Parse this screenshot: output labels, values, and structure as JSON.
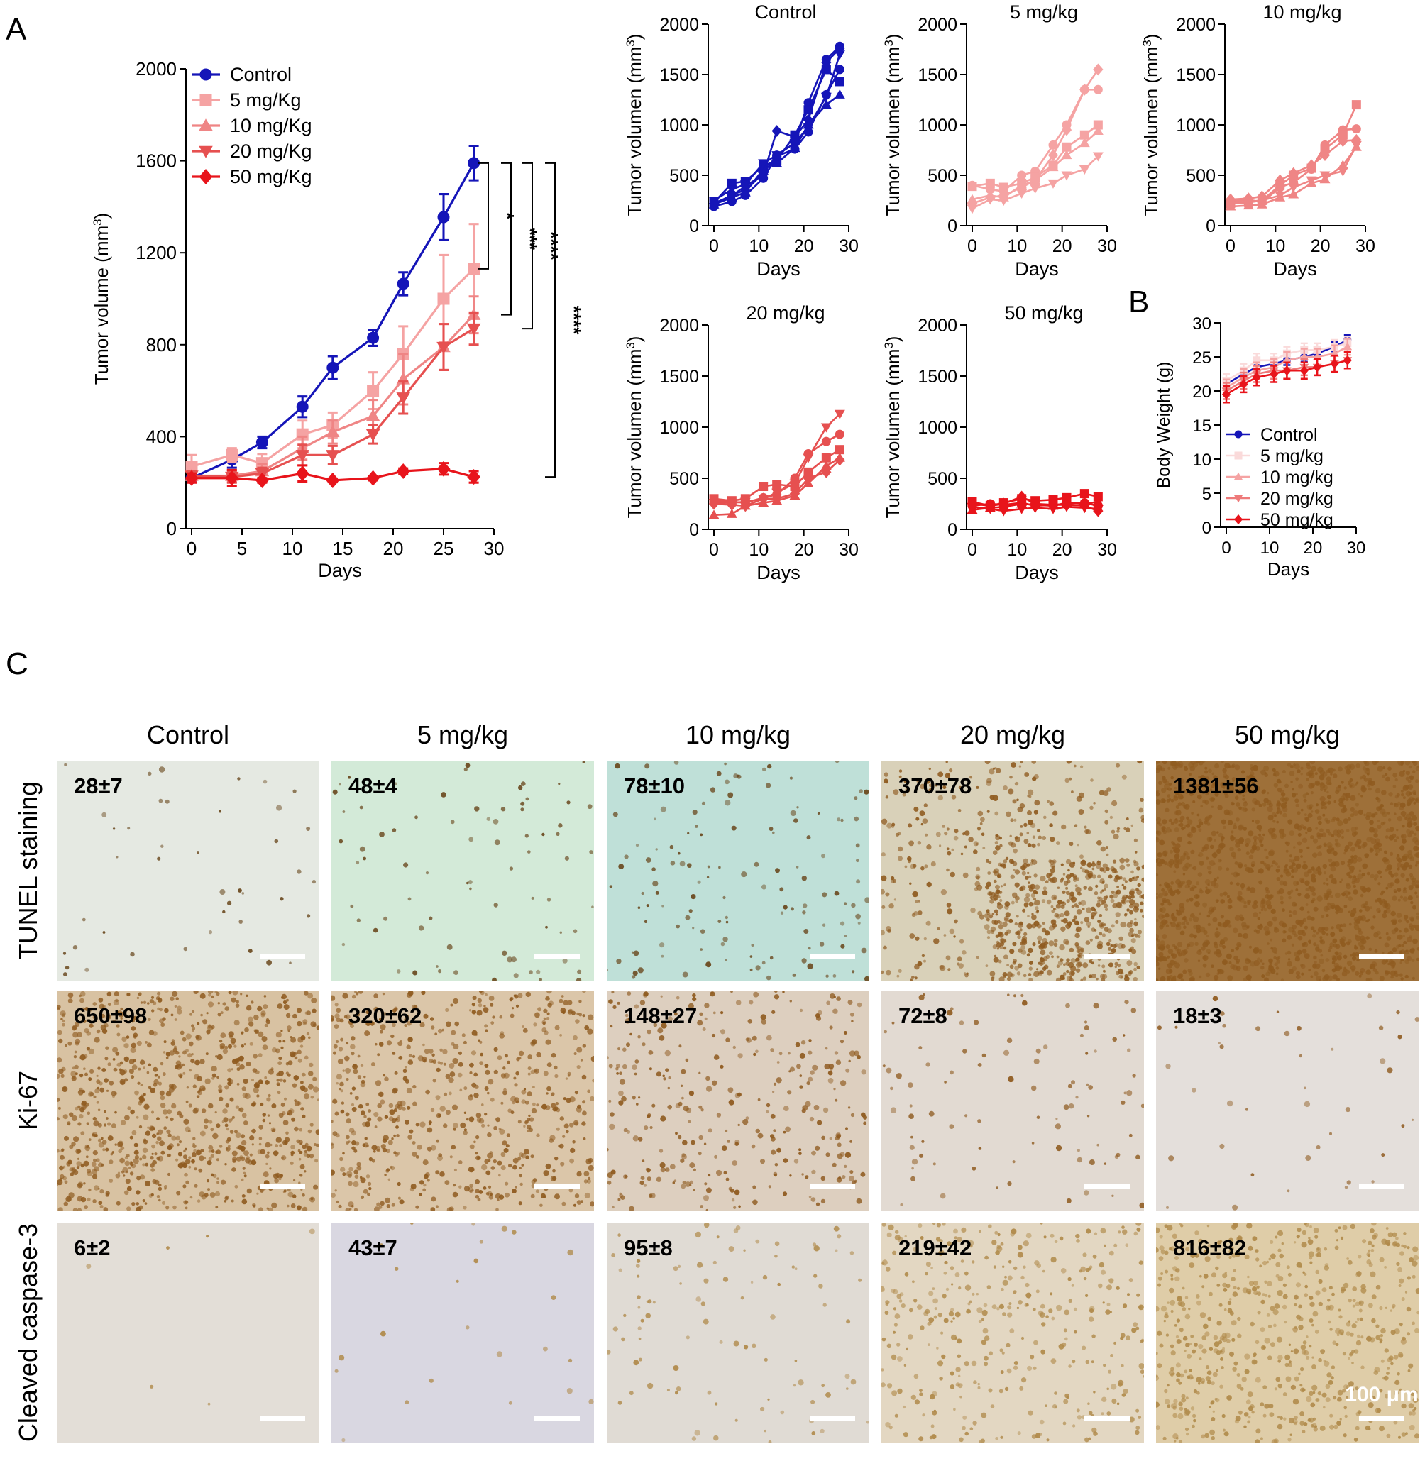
{
  "panel_labels": {
    "a": "A",
    "b": "B",
    "c": "C"
  },
  "colors": {
    "control": "#1515b8",
    "d5": "#f5a3a3",
    "d10": "#ef8585",
    "d20": "#e65050",
    "d50": "#e8141b",
    "tunel_blue": "#a9cfc8",
    "dab": "#8a5a1a"
  },
  "chart_data": [
    {
      "id": "mainA",
      "type": "line",
      "title": "",
      "xlabel": "Days",
      "ylabel": "Tumor volume (mm",
      "ylabel_sup": "3",
      "ylabel_tail": ")",
      "xlim": [
        0,
        30
      ],
      "ylim": [
        0,
        2000
      ],
      "xticks": [
        0,
        5,
        10,
        15,
        20,
        25,
        30
      ],
      "yticks": [
        0,
        400,
        800,
        1200,
        1600,
        2000
      ],
      "x": [
        0,
        4,
        7,
        11,
        14,
        18,
        21,
        25,
        28
      ],
      "series": [
        {
          "name": "Control",
          "marker": "circle",
          "color": "#1515b8",
          "values": [
            220,
            300,
            375,
            530,
            700,
            830,
            1065,
            1355,
            1590
          ],
          "err": [
            15,
            35,
            25,
            45,
            50,
            35,
            50,
            100,
            75
          ]
        },
        {
          "name": "5 mg/Kg",
          "marker": "square",
          "color": "#f5a3a3",
          "values": [
            270,
            320,
            285,
            410,
            450,
            600,
            760,
            1000,
            1130
          ],
          "err": [
            50,
            30,
            40,
            60,
            55,
            80,
            120,
            190,
            195
          ]
        },
        {
          "name": "10 mg/Kg",
          "marker": "triangle-up",
          "color": "#ef8585",
          "values": [
            230,
            230,
            250,
            350,
            420,
            490,
            650,
            790,
            930
          ],
          "err": [
            20,
            25,
            30,
            50,
            50,
            70,
            110,
            100,
            80
          ]
        },
        {
          "name": "20 mg/Kg",
          "marker": "triangle-down",
          "color": "#e65050",
          "values": [
            230,
            225,
            240,
            320,
            320,
            410,
            570,
            790,
            870
          ],
          "err": [
            20,
            25,
            25,
            45,
            40,
            40,
            70,
            100,
            70
          ]
        },
        {
          "name": "50 mg/Kg",
          "marker": "diamond",
          "color": "#e8141b",
          "values": [
            220,
            220,
            210,
            240,
            210,
            220,
            250,
            260,
            225
          ],
          "err": [
            20,
            35,
            10,
            35,
            8,
            10,
            12,
            25,
            25
          ]
        }
      ],
      "significance": [
        {
          "label": "*",
          "from": 1590,
          "to": 1130
        },
        {
          "label": "***",
          "from": 1590,
          "to": 930
        },
        {
          "label": "****",
          "from": 1590,
          "to": 870
        },
        {
          "label": "****",
          "from": 1590,
          "to": 225
        }
      ]
    },
    {
      "id": "smallControl",
      "type": "line",
      "title": "Control",
      "xlabel": "Days",
      "ylabel": "Tumor volumen (mm",
      "ylabel_sup": "3",
      "ylabel_tail": ")",
      "xlim": [
        0,
        30
      ],
      "ylim": [
        0,
        2000
      ],
      "xticks": [
        0,
        10,
        20,
        30
      ],
      "yticks": [
        0,
        500,
        1000,
        1500,
        2000
      ],
      "color": "#1515b8",
      "x": [
        0,
        4,
        7,
        11,
        14,
        18,
        21,
        25,
        28
      ],
      "series": [
        {
          "name": "m1",
          "marker": "circle",
          "values": [
            200,
            310,
            350,
            520,
            700,
            820,
            1220,
            1650,
            1780
          ]
        },
        {
          "name": "m2",
          "marker": "square",
          "values": [
            230,
            420,
            440,
            590,
            650,
            900,
            1150,
            1550,
            1430
          ]
        },
        {
          "name": "m3",
          "marker": "triangle-up",
          "values": [
            210,
            280,
            330,
            560,
            620,
            770,
            1000,
            1200,
            1300
          ]
        },
        {
          "name": "m4",
          "marker": "triangle-down",
          "values": [
            250,
            360,
            410,
            620,
            700,
            820,
            980,
            1280,
            1700
          ]
        },
        {
          "name": "m5",
          "marker": "diamond",
          "values": [
            220,
            300,
            390,
            510,
            940,
            880,
            1050,
            1620,
            1760
          ]
        },
        {
          "name": "m6",
          "marker": "circle",
          "values": [
            190,
            240,
            300,
            470,
            690,
            760,
            930,
            1300,
            1550
          ]
        }
      ]
    },
    {
      "id": "small5",
      "type": "line",
      "title": "5 mg/kg",
      "xlabel": "Days",
      "ylabel": "Tumor volumen (mm",
      "ylabel_sup": "3",
      "ylabel_tail": ")",
      "xlim": [
        0,
        30
      ],
      "ylim": [
        0,
        2000
      ],
      "xticks": [
        0,
        10,
        20,
        30
      ],
      "yticks": [
        0,
        500,
        1000,
        1500,
        2000
      ],
      "color": "#f5a3a3",
      "x": [
        0,
        4,
        7,
        11,
        14,
        18,
        21,
        25,
        28
      ],
      "series": [
        {
          "name": "m1",
          "marker": "circle",
          "values": [
            400,
            360,
            340,
            500,
            540,
            800,
            1000,
            1350,
            1350
          ]
        },
        {
          "name": "m2",
          "marker": "square",
          "values": [
            390,
            420,
            380,
            420,
            480,
            600,
            780,
            900,
            1000
          ]
        },
        {
          "name": "m3",
          "marker": "triangle-up",
          "values": [
            260,
            300,
            280,
            400,
            450,
            580,
            700,
            820,
            940
          ]
        },
        {
          "name": "m4",
          "marker": "triangle-down",
          "values": [
            170,
            260,
            250,
            320,
            370,
            420,
            500,
            560,
            690
          ]
        },
        {
          "name": "m5",
          "marker": "diamond",
          "values": [
            220,
            280,
            300,
            380,
            450,
            700,
            950,
            1350,
            1550
          ]
        }
      ]
    },
    {
      "id": "small10",
      "type": "line",
      "title": "10 mg/kg",
      "xlabel": "Days",
      "ylabel": "Tumor volumen (mm",
      "ylabel_sup": "3",
      "ylabel_tail": ")",
      "xlim": [
        0,
        30
      ],
      "ylim": [
        0,
        2000
      ],
      "xticks": [
        0,
        10,
        20,
        30
      ],
      "yticks": [
        0,
        500,
        1000,
        1500,
        2000
      ],
      "color": "#ef8585",
      "x": [
        0,
        4,
        7,
        11,
        14,
        18,
        21,
        25,
        28
      ],
      "series": [
        {
          "name": "m1",
          "marker": "circle",
          "values": [
            240,
            260,
            230,
            380,
            430,
            560,
            800,
            950,
            960
          ]
        },
        {
          "name": "m2",
          "marker": "square",
          "values": [
            220,
            230,
            250,
            400,
            500,
            570,
            760,
            900,
            1200
          ]
        },
        {
          "name": "m3",
          "marker": "triangle-up",
          "values": [
            190,
            200,
            210,
            280,
            310,
            420,
            460,
            600,
            780
          ]
        },
        {
          "name": "m4",
          "marker": "triangle-down",
          "values": [
            230,
            240,
            250,
            300,
            380,
            450,
            500,
            540,
            800
          ]
        },
        {
          "name": "m5",
          "marker": "diamond",
          "values": [
            260,
            270,
            290,
            450,
            520,
            600,
            700,
            840,
            850
          ]
        }
      ]
    },
    {
      "id": "small20",
      "type": "line",
      "title": "20 mg/kg",
      "xlabel": "Days",
      "ylabel": "Tumor volumen (mm",
      "ylabel_sup": "3",
      "ylabel_tail": ")",
      "xlim": [
        0,
        30
      ],
      "ylim": [
        0,
        2000
      ],
      "xticks": [
        0,
        10,
        20,
        30
      ],
      "yticks": [
        0,
        500,
        1000,
        1500,
        2000
      ],
      "color": "#e65050",
      "x": [
        0,
        4,
        7,
        11,
        14,
        18,
        21,
        25,
        28
      ],
      "series": [
        {
          "name": "m1",
          "marker": "circle",
          "values": [
            280,
            270,
            260,
            310,
            340,
            500,
            740,
            860,
            930
          ]
        },
        {
          "name": "m2",
          "marker": "square",
          "values": [
            300,
            280,
            300,
            420,
            440,
            420,
            560,
            700,
            780
          ]
        },
        {
          "name": "m3",
          "marker": "triangle-up",
          "values": [
            140,
            150,
            230,
            260,
            280,
            330,
            450,
            620,
            700
          ]
        },
        {
          "name": "m4",
          "marker": "triangle-down",
          "values": [
            260,
            260,
            270,
            300,
            360,
            450,
            700,
            1000,
            1130
          ]
        },
        {
          "name": "m5",
          "marker": "diamond",
          "values": [
            250,
            240,
            230,
            300,
            300,
            350,
            500,
            560,
            680
          ]
        }
      ]
    },
    {
      "id": "small50",
      "type": "line",
      "title": "50 mg/kg",
      "xlabel": "Days",
      "ylabel": "Tumor volumen (mm",
      "ylabel_sup": "3",
      "ylabel_tail": ")",
      "xlim": [
        0,
        30
      ],
      "ylim": [
        0,
        2000
      ],
      "xticks": [
        0,
        10,
        20,
        30
      ],
      "yticks": [
        0,
        500,
        1000,
        1500,
        2000
      ],
      "color": "#e8141b",
      "x": [
        0,
        4,
        7,
        11,
        14,
        18,
        21,
        25,
        28
      ],
      "series": [
        {
          "name": "m1",
          "marker": "circle",
          "values": [
            230,
            250,
            240,
            260,
            230,
            240,
            250,
            260,
            230
          ]
        },
        {
          "name": "m2",
          "marker": "square",
          "values": [
            270,
            230,
            260,
            300,
            280,
            290,
            310,
            350,
            320
          ]
        },
        {
          "name": "m3",
          "marker": "triangle-up",
          "values": [
            190,
            210,
            220,
            250,
            240,
            230,
            260,
            250,
            270
          ]
        },
        {
          "name": "m4",
          "marker": "triangle-down",
          "values": [
            220,
            200,
            180,
            200,
            210,
            200,
            220,
            210,
            200
          ]
        },
        {
          "name": "m5",
          "marker": "diamond",
          "values": [
            250,
            230,
            250,
            320,
            250,
            240,
            240,
            230,
            180
          ]
        }
      ]
    },
    {
      "id": "bodyB",
      "type": "line",
      "title": "",
      "xlabel": "Days",
      "ylabel": "Body Weight (g)",
      "xlim": [
        0,
        30
      ],
      "ylim": [
        0,
        30
      ],
      "xticks": [
        0,
        10,
        20,
        30
      ],
      "yticks": [
        0,
        5,
        10,
        15,
        20,
        25,
        30
      ],
      "x": [
        0,
        4,
        7,
        11,
        14,
        18,
        21,
        25,
        28
      ],
      "series": [
        {
          "name": "Control",
          "marker": "circle",
          "color": "#1515b8",
          "values": [
            21,
            22.5,
            23.5,
            24,
            24.5,
            25,
            25.5,
            26.5,
            27.5
          ],
          "err": [
            0.7,
            0.7,
            0.7,
            0.7,
            0.7,
            0.7,
            0.7,
            0.7,
            0.7
          ]
        },
        {
          "name": "5 mg/kg",
          "marker": "square",
          "color": "#fadada",
          "values": [
            21.5,
            23,
            24.5,
            24.5,
            25.5,
            26,
            26,
            26.5,
            27
          ],
          "err": [
            1,
            1,
            1,
            1,
            1,
            1,
            1,
            1,
            1
          ]
        },
        {
          "name": "10 mg/kg",
          "marker": "triangle-up",
          "color": "#f5a3a3",
          "values": [
            20.5,
            22,
            23,
            23.5,
            24.5,
            25,
            25,
            25.5,
            26.5
          ],
          "err": [
            1.2,
            1.2,
            1.2,
            1.2,
            1.2,
            1.2,
            1.2,
            1.2,
            1.2
          ]
        },
        {
          "name": "20 mg/kg",
          "marker": "triangle-down",
          "color": "#ee7a7a",
          "values": [
            20,
            21.5,
            22.5,
            23,
            23,
            23.5,
            23.5,
            24,
            24.5
          ],
          "err": [
            1.2,
            1.2,
            1.2,
            1.2,
            1.2,
            1.2,
            1.2,
            1.2,
            1.2
          ]
        },
        {
          "name": "50 mg/kg",
          "marker": "diamond",
          "color": "#e8141b",
          "values": [
            19.5,
            21,
            22,
            22.5,
            23,
            23,
            23.5,
            24,
            24.5
          ],
          "err": [
            1.2,
            1.2,
            1.2,
            1.2,
            1.2,
            1.2,
            1.2,
            1.2,
            1.2
          ]
        }
      ]
    }
  ],
  "panel_c": {
    "columns": [
      "Control",
      "5 mg/kg",
      "10 mg/kg",
      "20 mg/kg",
      "50 mg/kg"
    ],
    "rows": [
      {
        "label": "TUNEL staining",
        "counts": [
          "28±7",
          "48±4",
          "78±10",
          "370±78",
          "1381±56"
        ],
        "density": [
          0.02,
          0.04,
          0.07,
          0.45,
          0.85
        ]
      },
      {
        "label": "Ki-67",
        "counts": [
          "650±98",
          "320±62",
          "148±27",
          "72±8",
          "18±3"
        ],
        "density": [
          0.5,
          0.35,
          0.18,
          0.05,
          0.02
        ]
      },
      {
        "label": "Cleaved caspase-3",
        "counts": [
          "6±2",
          "43±7",
          "95±8",
          "219±42",
          "816±82"
        ],
        "density": [
          0.0,
          0.01,
          0.05,
          0.2,
          0.35
        ]
      }
    ],
    "scale_bar_label": "100 μm"
  }
}
